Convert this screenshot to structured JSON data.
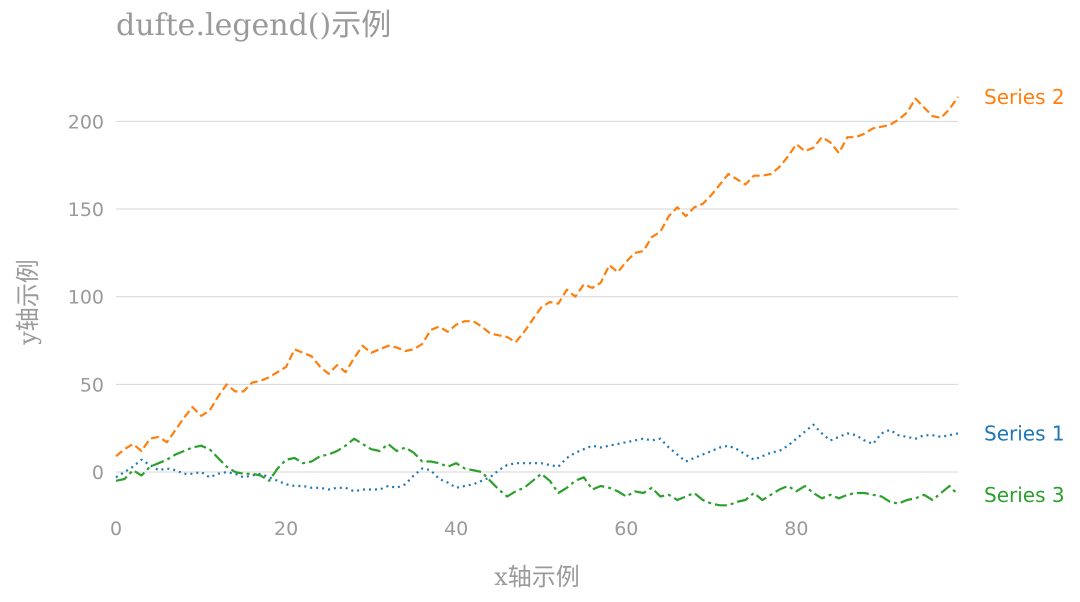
{
  "chart_data": {
    "type": "line",
    "title": "dufte.legend()示例",
    "xlabel": "x轴示例",
    "ylabel": "y轴示例",
    "xlim": [
      0,
      99
    ],
    "ylim": [
      -20,
      220
    ],
    "xticks": [
      0,
      20,
      40,
      60,
      80
    ],
    "yticks": [
      0,
      50,
      100,
      150,
      200
    ],
    "grid": "horizontal",
    "legend": "inline-right",
    "series": [
      {
        "name": "Series 1",
        "color": "#1f77b4",
        "dash": "dotted",
        "x": [
          0,
          1,
          2,
          3,
          4,
          5,
          6,
          7,
          8,
          9,
          10,
          11,
          12,
          13,
          14,
          15,
          16,
          17,
          18,
          19,
          20,
          21,
          22,
          23,
          24,
          25,
          26,
          27,
          28,
          29,
          30,
          31,
          32,
          33,
          34,
          35,
          36,
          37,
          38,
          39,
          40,
          41,
          42,
          43,
          44,
          45,
          46,
          47,
          48,
          49,
          50,
          51,
          52,
          53,
          54,
          55,
          56,
          57,
          58,
          59,
          60,
          61,
          62,
          63,
          64,
          65,
          66,
          67,
          68,
          69,
          70,
          71,
          72,
          73,
          74,
          75,
          76,
          77,
          78,
          79,
          80,
          81,
          82,
          83,
          84,
          85,
          86,
          87,
          88,
          89,
          90,
          91,
          92,
          93,
          94,
          95,
          96,
          97,
          98,
          99
        ],
        "values": [
          -3,
          0,
          3,
          7,
          4,
          1,
          2,
          1,
          -1,
          -1,
          0,
          -3,
          -1,
          0,
          -1,
          -3,
          -2,
          -1,
          -3,
          -5,
          -7,
          -8,
          -8,
          -9,
          -9,
          -10,
          -9,
          -9,
          -11,
          -10,
          -10,
          -10,
          -8,
          -9,
          -7,
          -2,
          2,
          1,
          -4,
          -6,
          -9,
          -8,
          -7,
          -5,
          -3,
          1,
          4,
          5,
          5,
          5,
          5,
          4,
          3,
          8,
          11,
          13,
          15,
          14,
          15,
          16,
          17,
          18,
          19,
          18,
          19,
          14,
          10,
          6,
          8,
          10,
          12,
          14,
          15,
          13,
          10,
          7,
          9,
          11,
          12,
          15,
          19,
          23,
          27,
          22,
          18,
          20,
          22,
          21,
          18,
          16,
          22,
          24,
          21,
          20,
          19,
          21,
          21,
          20,
          21,
          22
        ]
      },
      {
        "name": "Series 2",
        "color": "#ff7f0e",
        "dash": "dashed",
        "x": [
          0,
          1,
          2,
          3,
          4,
          5,
          6,
          7,
          8,
          9,
          10,
          11,
          12,
          13,
          14,
          15,
          16,
          17,
          18,
          19,
          20,
          21,
          22,
          23,
          24,
          25,
          26,
          27,
          28,
          29,
          30,
          31,
          32,
          33,
          34,
          35,
          36,
          37,
          38,
          39,
          40,
          41,
          42,
          43,
          44,
          45,
          46,
          47,
          48,
          49,
          50,
          51,
          52,
          53,
          54,
          55,
          56,
          57,
          58,
          59,
          60,
          61,
          62,
          63,
          64,
          65,
          66,
          67,
          68,
          69,
          70,
          71,
          72,
          73,
          74,
          75,
          76,
          77,
          78,
          79,
          80,
          81,
          82,
          83,
          84,
          85,
          86,
          87,
          88,
          89,
          90,
          91,
          92,
          93,
          94,
          95,
          96,
          97,
          98,
          99
        ],
        "values": [
          9,
          13,
          16,
          12,
          19,
          20,
          17,
          24,
          31,
          37,
          32,
          35,
          43,
          50,
          46,
          46,
          51,
          52,
          54,
          57,
          60,
          70,
          68,
          66,
          60,
          56,
          61,
          57,
          65,
          72,
          68,
          70,
          72,
          71,
          69,
          70,
          73,
          81,
          83,
          80,
          84,
          86,
          86,
          83,
          79,
          78,
          77,
          74,
          80,
          87,
          94,
          97,
          96,
          104,
          100,
          107,
          105,
          108,
          118,
          114,
          120,
          125,
          126,
          134,
          137,
          146,
          151,
          146,
          151,
          153,
          158,
          164,
          170,
          167,
          164,
          169,
          169,
          170,
          174,
          180,
          187,
          183,
          185,
          191,
          188,
          182,
          191,
          191,
          193,
          196,
          197,
          198,
          201,
          205,
          213,
          208,
          203,
          202,
          207,
          214
        ]
      },
      {
        "name": "Series 3",
        "color": "#2ca02c",
        "dash": "dashdot",
        "x": [
          0,
          1,
          2,
          3,
          4,
          5,
          6,
          7,
          8,
          9,
          10,
          11,
          12,
          13,
          14,
          15,
          16,
          17,
          18,
          19,
          20,
          21,
          22,
          23,
          24,
          25,
          26,
          27,
          28,
          29,
          30,
          31,
          32,
          33,
          34,
          35,
          36,
          37,
          38,
          39,
          40,
          41,
          42,
          43,
          44,
          45,
          46,
          47,
          48,
          49,
          50,
          51,
          52,
          53,
          54,
          55,
          56,
          57,
          58,
          59,
          60,
          61,
          62,
          63,
          64,
          65,
          66,
          67,
          68,
          69,
          70,
          71,
          72,
          73,
          74,
          75,
          76,
          77,
          78,
          79,
          80,
          81,
          82,
          83,
          84,
          85,
          86,
          87,
          88,
          89,
          90,
          91,
          92,
          93,
          94,
          95,
          96,
          97,
          98,
          99
        ],
        "values": [
          -5,
          -4,
          1,
          -2,
          3,
          5,
          7,
          10,
          12,
          14,
          15,
          13,
          8,
          3,
          0,
          -1,
          -1,
          -2,
          -5,
          2,
          7,
          8,
          5,
          6,
          9,
          10,
          12,
          15,
          19,
          16,
          13,
          12,
          16,
          12,
          14,
          11,
          6,
          6,
          5,
          3,
          5,
          2,
          1,
          0,
          -5,
          -10,
          -14,
          -11,
          -9,
          -5,
          -1,
          -5,
          -12,
          -9,
          -5,
          -3,
          -10,
          -8,
          -9,
          -11,
          -14,
          -11,
          -12,
          -9,
          -14,
          -13,
          -16,
          -14,
          -12,
          -16,
          -18,
          -19,
          -19,
          -17,
          -16,
          -12,
          -16,
          -13,
          -10,
          -8,
          -11,
          -8,
          -12,
          -15,
          -13,
          -15,
          -13,
          -12,
          -12,
          -13,
          -14,
          -17,
          -18,
          -16,
          -15,
          -13,
          -16,
          -12,
          -8,
          -13
        ]
      }
    ]
  }
}
